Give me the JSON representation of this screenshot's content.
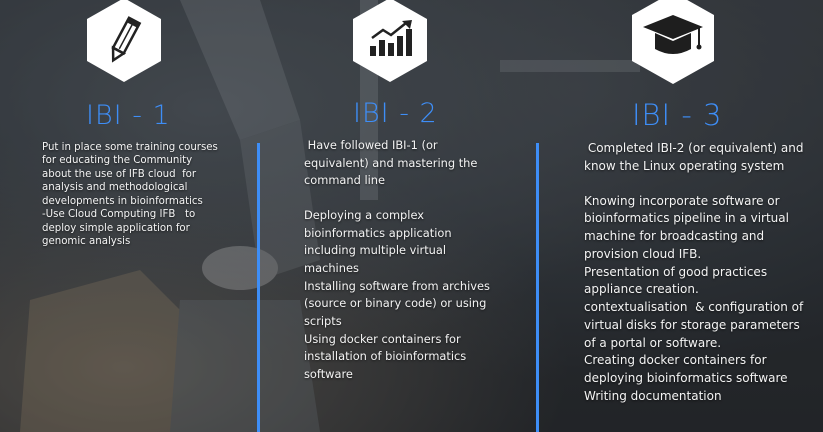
{
  "columns": [
    {
      "icon": "pencil-icon",
      "title": "IBI - 1",
      "paragraphs": [
        "Put in place some training courses for educating the Community about the use of IFB cloud  for  analysis and methodological developments in bioinformatics",
        "-Use Cloud Computing IFB   to deploy simple application for genomic analysis"
      ]
    },
    {
      "icon": "growth-chart-icon",
      "title": "IBI - 2",
      "paragraphs": [
        " Have followed IBI-1 (or equivalent) and mastering the command line",
        "Deploying a complex bioinformatics application including multiple virtual machines",
        "Installing software from archives (source or binary code) or using scripts",
        "Using docker containers for installation of bioinformatics software"
      ]
    },
    {
      "icon": "graduation-cap-icon",
      "title": "IBI - 3",
      "paragraphs": [
        " Completed IBI-2 (or equivalent) and know the Linux operating system",
        "Knowing incorporate software or bioinformatics pipeline in a virtual machine for broadcasting and provision cloud IFB.",
        "Presentation of good practices appliance creation.",
        "contextualisation  & configuration of virtual disks for storage parameters of a portal or software.",
        "Creating docker containers for deploying bioinformatics software",
        "Writing documentation"
      ]
    }
  ],
  "colors": {
    "accent": "#3e8ef7",
    "hex_bg": "#ffffff",
    "text": "#f4f4f4"
  }
}
